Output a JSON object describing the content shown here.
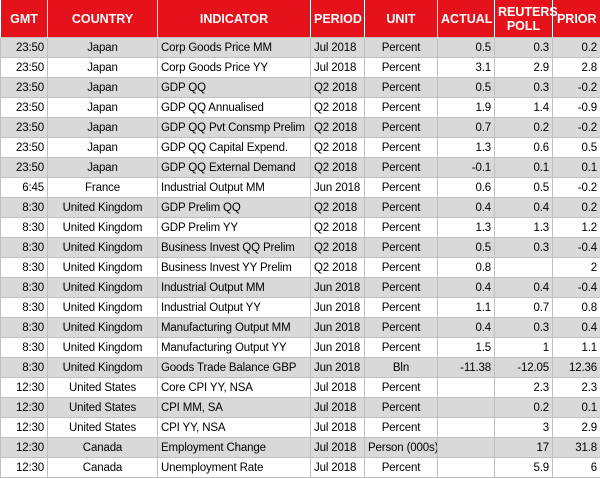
{
  "table": {
    "header": [
      "GMT",
      "COUNTRY",
      "INDICATOR",
      "PERIOD",
      "UNIT",
      "ACTUAL",
      "REUTERS POLL",
      "PRIOR"
    ],
    "rows": [
      [
        "23:50",
        "Japan",
        "Corp Goods Price MM",
        "Jul 2018",
        "Percent",
        "0.5",
        "0.3",
        "0.2"
      ],
      [
        "23:50",
        "Japan",
        "Corp Goods Price YY",
        "Jul 2018",
        "Percent",
        "3.1",
        "2.9",
        "2.8"
      ],
      [
        "23:50",
        "Japan",
        "GDP QQ",
        "Q2 2018",
        "Percent",
        "0.5",
        "0.3",
        "-0.2"
      ],
      [
        "23:50",
        "Japan",
        "GDP QQ Annualised",
        "Q2 2018",
        "Percent",
        "1.9",
        "1.4",
        "-0.9"
      ],
      [
        "23:50",
        "Japan",
        "GDP QQ Pvt Consmp Prelim",
        "Q2 2018",
        "Percent",
        "0.7",
        "0.2",
        "-0.2"
      ],
      [
        "23:50",
        "Japan",
        "GDP QQ Capital Expend.",
        "Q2 2018",
        "Percent",
        "1.3",
        "0.6",
        "0.5"
      ],
      [
        "23:50",
        "Japan",
        "GDP QQ External Demand",
        "Q2 2018",
        "Percent",
        "-0.1",
        "0.1",
        "0.1"
      ],
      [
        "6:45",
        "France",
        "Industrial Output MM",
        "Jun 2018",
        "Percent",
        "0.6",
        "0.5",
        "-0.2"
      ],
      [
        "8:30",
        "United Kingdom",
        "GDP Prelim QQ",
        "Q2 2018",
        "Percent",
        "0.4",
        "0.4",
        "0.2"
      ],
      [
        "8:30",
        "United Kingdom",
        "GDP Prelim YY",
        "Q2 2018",
        "Percent",
        "1.3",
        "1.3",
        "1.2"
      ],
      [
        "8:30",
        "United Kingdom",
        "Business Invest QQ Prelim",
        "Q2 2018",
        "Percent",
        "0.5",
        "0.3",
        "-0.4"
      ],
      [
        "8:30",
        "United Kingdom",
        "Business Invest YY Prelim",
        "Q2 2018",
        "Percent",
        "0.8",
        null,
        "2"
      ],
      [
        "8:30",
        "United Kingdom",
        "Industrial Output MM",
        "Jun 2018",
        "Percent",
        "0.4",
        "0.4",
        "-0.4"
      ],
      [
        "8:30",
        "United Kingdom",
        "Industrial Output YY",
        "Jun 2018",
        "Percent",
        "1.1",
        "0.7",
        "0.8"
      ],
      [
        "8:30",
        "United Kingdom",
        "Manufacturing Output MM",
        "Jun 2018",
        "Percent",
        "0.4",
        "0.3",
        "0.4"
      ],
      [
        "8:30",
        "United Kingdom",
        "Manufacturing Output YY",
        "Jun 2018",
        "Percent",
        "1.5",
        "1",
        "1.1"
      ],
      [
        "8:30",
        "United Kingdom",
        "Goods Trade Balance GBP",
        "Jun 2018",
        "Bln",
        "-11.38",
        "-12.05",
        "12.36"
      ],
      [
        "12:30",
        "United States",
        "Core CPI YY, NSA",
        "Jul 2018",
        "Percent",
        null,
        "2.3",
        "2.3"
      ],
      [
        "12:30",
        "United States",
        "CPI MM, SA",
        "Jul 2018",
        "Percent",
        null,
        "0.2",
        "0.1"
      ],
      [
        "12:30",
        "United States",
        "CPI YY, NSA",
        "Jul 2018",
        "Percent",
        null,
        "3",
        "2.9"
      ],
      [
        "12:30",
        "Canada",
        "Employment Change",
        "Jul 2018",
        "Person (000s)",
        null,
        "17",
        "31.8"
      ],
      [
        "12:30",
        "Canada",
        "Unemployment Rate",
        "Jul 2018",
        "Percent",
        null,
        "5.9",
        "6"
      ]
    ]
  }
}
